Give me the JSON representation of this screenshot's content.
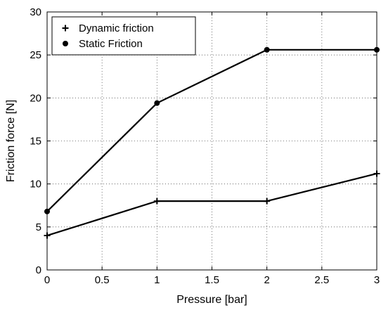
{
  "chart_data": {
    "type": "line",
    "xlabel": "Pressure [bar]",
    "ylabel": "Friction force [N]",
    "xlim": [
      0,
      3
    ],
    "ylim": [
      0,
      30
    ],
    "xticks": [
      "0",
      "0.5",
      "1",
      "1.5",
      "2",
      "2.5",
      "3"
    ],
    "yticks": [
      "0",
      "5",
      "10",
      "15",
      "20",
      "25",
      "30"
    ],
    "grid": true,
    "legend_position": "top-left",
    "series": [
      {
        "name": "Dynamic friction",
        "marker": "plus",
        "x": [
          0,
          1,
          2,
          3
        ],
        "y": [
          4.0,
          8.0,
          8.0,
          11.2
        ]
      },
      {
        "name": "Static Friction",
        "marker": "dot",
        "x": [
          0,
          1,
          2,
          3
        ],
        "y": [
          6.8,
          19.4,
          25.6,
          25.6
        ]
      }
    ]
  }
}
